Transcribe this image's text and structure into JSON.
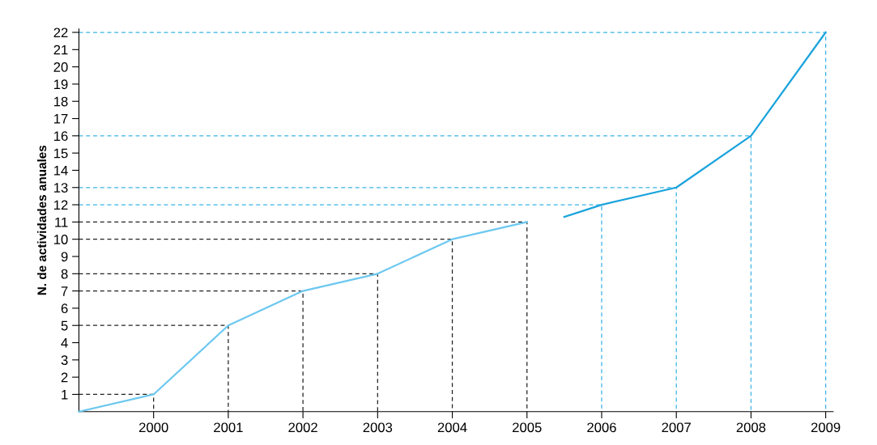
{
  "chart_data": {
    "type": "line",
    "ylabel": "N. de actividades anuales",
    "xlim": [
      1999,
      2009.1
    ],
    "xticks": [
      2000,
      2001,
      2002,
      2003,
      2004,
      2005,
      2006,
      2007,
      2008,
      2009
    ],
    "ylim": [
      0,
      22.2
    ],
    "grid": false,
    "yticks": [
      1,
      2,
      3,
      4,
      5,
      6,
      7,
      8,
      9,
      10,
      11,
      12,
      13,
      14,
      15,
      16,
      17,
      18,
      19,
      20,
      21,
      22
    ],
    "legend": false,
    "marker": "none",
    "line_style": "solid",
    "series": [
      {
        "color": "#222222",
        "line_style": "dashed",
        "x": [
          1999,
          2000,
          2000
        ],
        "values": [
          1,
          1,
          0
        ]
      },
      {
        "color": "#222222",
        "line_style": "dashed",
        "x": [
          1999,
          2001,
          2001
        ],
        "values": [
          5,
          5,
          0
        ]
      },
      {
        "color": "#222222",
        "line_style": "dashed",
        "x": [
          1999,
          2002,
          2002
        ],
        "values": [
          7,
          7,
          0
        ]
      },
      {
        "color": "#222222",
        "line_style": "dashed",
        "x": [
          1999,
          2003,
          2003
        ],
        "values": [
          8,
          8,
          0
        ]
      },
      {
        "color": "#222222",
        "line_style": "dashed",
        "x": [
          1999,
          2004,
          2004
        ],
        "values": [
          10,
          10,
          0
        ]
      },
      {
        "color": "#222222",
        "line_style": "dashed",
        "x": [
          1999,
          2005,
          2005
        ],
        "values": [
          11,
          11,
          0
        ]
      },
      {
        "color": "#3ab4e6",
        "line_style": "dashed",
        "x": [
          1999,
          2006,
          2006
        ],
        "values": [
          12,
          12,
          0
        ]
      },
      {
        "color": "#3ab4e6",
        "line_style": "dashed",
        "x": [
          1999,
          2007,
          2007
        ],
        "values": [
          13,
          13,
          0
        ]
      },
      {
        "color": "#3ab4e6",
        "line_style": "dashed",
        "x": [
          1999,
          2008,
          2008
        ],
        "values": [
          16,
          16,
          0
        ]
      },
      {
        "color": "#3ab4e6",
        "line_style": "dashed",
        "x": [
          1999,
          2009,
          2009
        ],
        "values": [
          22,
          22,
          0
        ]
      },
      {
        "color": "#6cc8f0",
        "x": [
          1999,
          2000,
          2001,
          2002,
          2003,
          2004,
          2005
        ],
        "values": [
          0,
          1,
          5,
          7,
          8,
          10,
          11
        ]
      },
      {
        "color": "#1aa3dc",
        "x": [
          2005.5,
          2006,
          2007,
          2008,
          2009
        ],
        "values": [
          11.3,
          12,
          13,
          16,
          22
        ]
      }
    ]
  }
}
